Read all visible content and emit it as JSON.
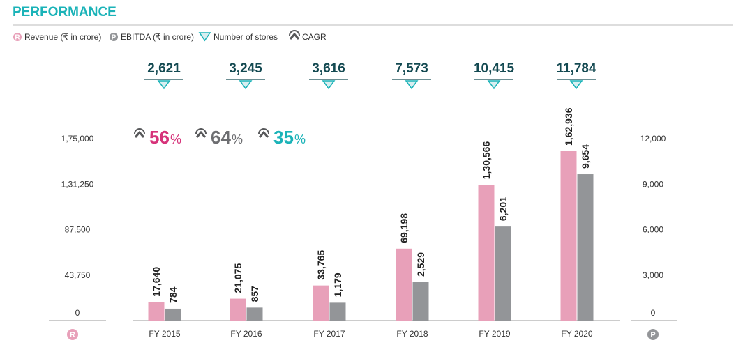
{
  "title": "PERFORMANCE",
  "colors": {
    "title": "#1bb3b8",
    "revenue": "#e8a0b9",
    "ebitda": "#939598",
    "stores": "#1bb3b8",
    "stores_text": "#144a52",
    "cagr_revenue": "#d6337a",
    "cagr_ebitda": "#6d6e71",
    "cagr_stores": "#1bb3b8",
    "cagr_icon": "#58595b"
  },
  "legend": {
    "revenue_badge": "R",
    "revenue_label": "Revenue (₹ in crore)",
    "ebitda_badge": "P",
    "ebitda_label": "EBITDA (₹ in crore)",
    "stores_icon": "down-triangle-icon",
    "stores_label": "Number of stores",
    "cagr_icon": "cagr-arrow-icon",
    "cagr_label": "CAGR"
  },
  "axes": {
    "left_badge": "R",
    "right_badge": "P"
  },
  "cagr": [
    {
      "num": "56",
      "pct": "%",
      "color_key": "cagr_revenue"
    },
    {
      "num": "64",
      "pct": "%",
      "color_key": "cagr_ebitda"
    },
    {
      "num": "35",
      "pct": "%",
      "color_key": "cagr_stores"
    }
  ],
  "chart_data": {
    "type": "bar",
    "categories": [
      "FY 2015",
      "FY 2016",
      "FY 2017",
      "FY 2018",
      "FY 2019",
      "FY 2020"
    ],
    "series": [
      {
        "name": "Revenue (₹ in crore)",
        "axis": "left",
        "values": [
          17640,
          21075,
          33765,
          69198,
          130566,
          162936
        ],
        "labels": [
          "17,640",
          "21,075",
          "33,765",
          "69,198",
          "1,30,566",
          "1,62,936"
        ]
      },
      {
        "name": "EBITDA (₹ in crore)",
        "axis": "right",
        "values": [
          784,
          857,
          1179,
          2529,
          6201,
          9654
        ],
        "labels": [
          "784",
          "857",
          "1,179",
          "2,529",
          "6,201",
          "9,654"
        ]
      }
    ],
    "stores": {
      "name": "Number of stores",
      "values": [
        2621,
        3245,
        3616,
        7573,
        10415,
        11784
      ],
      "labels": [
        "2,621",
        "3,245",
        "3,616",
        "7,573",
        "10,415",
        "11,784"
      ]
    },
    "left_axis": {
      "ylim": [
        0,
        175000
      ],
      "ticks": [
        0,
        43750,
        87500,
        131250,
        175000
      ],
      "tick_labels": [
        "0",
        "43,750",
        "87,500",
        "1,31,250",
        "1,75,000"
      ]
    },
    "right_axis": {
      "ylim": [
        0,
        12000
      ],
      "ticks": [
        0,
        3000,
        6000,
        9000,
        12000
      ],
      "tick_labels": [
        "0",
        "3,000",
        "6,000",
        "9,000",
        "12,000"
      ]
    },
    "grid": false,
    "legend_position": "top-left"
  }
}
